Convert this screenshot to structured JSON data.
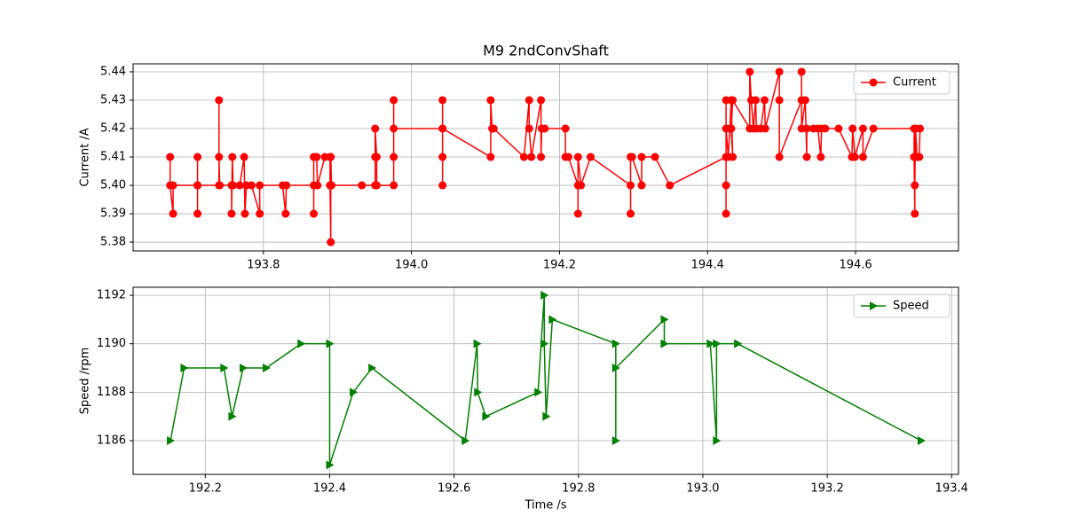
{
  "chart_data": [
    {
      "type": "line",
      "title": "M9 2ndConvShaft",
      "ylabel": "Current /A",
      "x": [
        193.674,
        193.674,
        193.678,
        193.678,
        193.711,
        193.711,
        193.711,
        193.711,
        193.74,
        193.74,
        193.74,
        193.741,
        193.757,
        193.757,
        193.758,
        193.759,
        193.768,
        193.774,
        193.775,
        193.777,
        193.784,
        193.795,
        193.795,
        193.826,
        193.83,
        193.831,
        193.868,
        193.868,
        193.868,
        193.872,
        193.873,
        193.883,
        193.89,
        193.89,
        193.891,
        193.891,
        193.892,
        193.933,
        193.951,
        193.951,
        193.951,
        193.953,
        193.953,
        193.976,
        193.976,
        193.976,
        193.976,
        194.042,
        194.042,
        194.042,
        194.042,
        194.042,
        194.107,
        194.107,
        194.109,
        194.111,
        194.152,
        194.159,
        194.159,
        194.162,
        194.175,
        194.175,
        194.176,
        194.18,
        194.208,
        194.208,
        194.212,
        194.225,
        194.225,
        194.225,
        194.229,
        194.242,
        194.296,
        194.296,
        194.296,
        194.298,
        194.311,
        194.311,
        194.329,
        194.349,
        194.425,
        194.425,
        194.425,
        194.425,
        194.425,
        194.428,
        194.43,
        194.432,
        194.434,
        194.432,
        194.434,
        194.457,
        194.457,
        194.459,
        194.462,
        194.465,
        194.466,
        194.472,
        194.477,
        194.478,
        194.497,
        194.497,
        194.497,
        194.527,
        194.527,
        194.527,
        194.532,
        194.534,
        194.534,
        194.543,
        194.549,
        194.553,
        194.554,
        194.559,
        194.577,
        194.595,
        194.596,
        194.599,
        194.61,
        194.61,
        194.624,
        194.679,
        194.679,
        194.68,
        194.68,
        194.681,
        194.683,
        194.686,
        194.687
      ],
      "series": [
        {
          "name": "Current",
          "color": "#ff0000",
          "marker": "circle",
          "values": [
            5.41,
            5.4,
            5.39,
            5.4,
            5.4,
            5.39,
            5.41,
            5.4,
            5.4,
            5.43,
            5.41,
            5.4,
            5.4,
            5.39,
            5.41,
            5.4,
            5.4,
            5.41,
            5.39,
            5.4,
            5.4,
            5.39,
            5.4,
            5.4,
            5.39,
            5.4,
            5.4,
            5.39,
            5.41,
            5.41,
            5.4,
            5.41,
            5.41,
            5.4,
            5.38,
            5.41,
            5.4,
            5.4,
            5.4,
            5.41,
            5.42,
            5.41,
            5.4,
            5.4,
            5.41,
            5.43,
            5.42,
            5.42,
            5.43,
            5.41,
            5.4,
            5.42,
            5.41,
            5.43,
            5.42,
            5.42,
            5.41,
            5.43,
            5.42,
            5.41,
            5.43,
            5.41,
            5.42,
            5.42,
            5.42,
            5.41,
            5.41,
            5.4,
            5.39,
            5.41,
            5.4,
            5.41,
            5.4,
            5.39,
            5.41,
            5.41,
            5.4,
            5.41,
            5.41,
            5.4,
            5.41,
            5.39,
            5.4,
            5.43,
            5.42,
            5.41,
            5.42,
            5.43,
            5.41,
            5.42,
            5.43,
            5.42,
            5.44,
            5.43,
            5.42,
            5.43,
            5.42,
            5.42,
            5.43,
            5.42,
            5.44,
            5.43,
            5.41,
            5.43,
            5.44,
            5.42,
            5.43,
            5.41,
            5.42,
            5.42,
            5.42,
            5.41,
            5.42,
            5.42,
            5.42,
            5.41,
            5.42,
            5.41,
            5.42,
            5.41,
            5.42,
            5.42,
            5.41,
            5.39,
            5.4,
            5.42,
            5.41,
            5.41,
            5.42
          ]
        }
      ],
      "xlim": [
        193.624,
        194.739
      ],
      "xticks": [
        193.8,
        {
          "value": 194,
          "label": "194.0"
        },
        194.2,
        194.4,
        194.6
      ],
      "ylim": [
        5.3769,
        5.4428
      ],
      "yticks": [
        {
          "value": 5.38,
          "label": "5.38"
        },
        {
          "value": 5.39,
          "label": "5.39"
        },
        {
          "value": 5.4,
          "label": "5.40"
        },
        {
          "value": 5.41,
          "label": "5.41"
        },
        {
          "value": 5.42,
          "label": "5.42"
        },
        {
          "value": 5.43,
          "label": "5.43"
        },
        {
          "value": 5.44,
          "label": "5.44"
        }
      ],
      "grid": true,
      "legend": "upper right"
    },
    {
      "type": "line",
      "xlabel": "Time /s",
      "ylabel": "Speed /rpm",
      "x": [
        192.144,
        192.166,
        192.23,
        192.243,
        192.261,
        192.298,
        192.354,
        192.4,
        192.4,
        192.438,
        192.468,
        192.618,
        192.637,
        192.638,
        192.651,
        192.735,
        192.745,
        192.745,
        192.748,
        192.758,
        192.86,
        192.86,
        192.86,
        192.938,
        192.938,
        193.012,
        193.022,
        193.022,
        193.056,
        193.351
      ],
      "series": [
        {
          "name": "Speed",
          "color": "#008000",
          "marker": "triangle-right",
          "values": [
            1186,
            1189,
            1189,
            1187,
            1189,
            1189,
            1190,
            1190,
            1185,
            1188,
            1189,
            1186,
            1190,
            1188,
            1187,
            1188,
            1192,
            1190,
            1187,
            1191,
            1190,
            1186,
            1189,
            1191,
            1190,
            1190,
            1186,
            1190,
            1190,
            1186
          ]
        }
      ],
      "xlim": [
        192.084,
        193.411
      ],
      "xticks": [
        192.2,
        192.4,
        192.6,
        192.8,
        {
          "value": 193,
          "label": "193.0"
        },
        193.2,
        193.4
      ],
      "ylim": [
        1184.61,
        1192.33
      ],
      "yticks": [
        1186,
        1188,
        1190,
        1192
      ],
      "grid": true,
      "legend": "upper right"
    }
  ]
}
